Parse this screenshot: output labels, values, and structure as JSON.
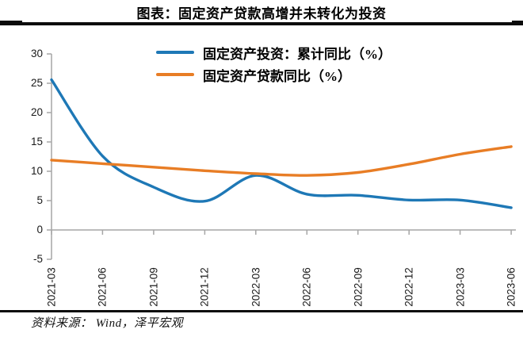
{
  "chart_data": {
    "type": "line",
    "title": "图表：固定资产贷款高增并未转化为投资",
    "source": "资料来源： Wind，泽平宏观",
    "categories": [
      "2021-03",
      "2021-06",
      "2021-09",
      "2021-12",
      "2022-03",
      "2022-06",
      "2022-09",
      "2022-12",
      "2023-03",
      "2023-06"
    ],
    "series": [
      {
        "name": "固定资产投资：累计同比（%）",
        "color": "#1E78B6",
        "values": [
          25.6,
          12.6,
          7.3,
          4.9,
          9.3,
          6.1,
          5.9,
          5.1,
          5.1,
          3.8
        ]
      },
      {
        "name": "固定资产贷款同比（%）",
        "color": "#E87D25",
        "values": [
          11.9,
          11.3,
          10.7,
          10.1,
          9.6,
          9.3,
          9.8,
          11.2,
          12.9,
          14.2
        ]
      }
    ],
    "y_axis": {
      "ticks": [
        30,
        25,
        20,
        15,
        10,
        5,
        0,
        -5
      ],
      "min": -5,
      "max": 30
    },
    "x_axis": {
      "tick_style": "outward",
      "label_rotation_deg": 90
    },
    "legend_position": "top",
    "grid": "off",
    "smooth": true,
    "line_width": 3.4,
    "axis_color": "#A6A6A6",
    "rule_color": "#0B0B0B",
    "background": "#FFFFFF"
  }
}
